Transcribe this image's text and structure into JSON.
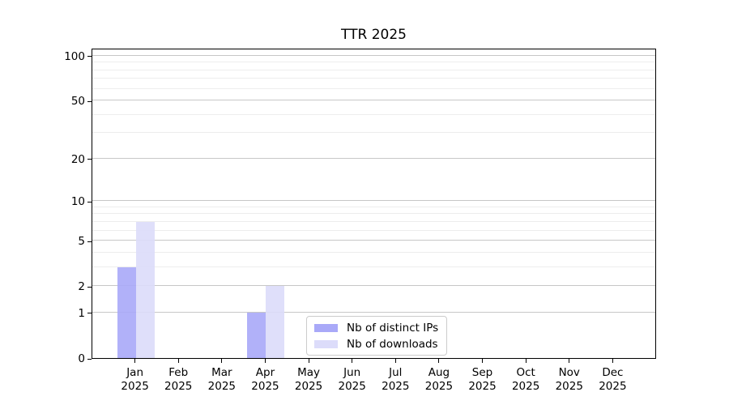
{
  "chart_data": {
    "type": "bar",
    "title": "TTR 2025",
    "categories": [
      "Jan 2025",
      "Feb 2025",
      "Mar 2025",
      "Apr 2025",
      "May 2025",
      "Jun 2025",
      "Jul 2025",
      "Aug 2025",
      "Sep 2025",
      "Oct 2025",
      "Nov 2025",
      "Dec 2025"
    ],
    "x_tick_months": [
      "Jan",
      "Feb",
      "Mar",
      "Apr",
      "May",
      "Jun",
      "Jul",
      "Aug",
      "Sep",
      "Oct",
      "Nov",
      "Dec"
    ],
    "x_tick_year": "2025",
    "series": [
      {
        "name": "Nb of distinct IPs",
        "color": "#a9a9f8",
        "values": [
          3,
          0,
          0,
          1,
          0,
          0,
          0,
          0,
          0,
          0,
          0,
          0
        ]
      },
      {
        "name": "Nb of downloads",
        "color": "#dcdcfa",
        "values": [
          7,
          0,
          0,
          2,
          0,
          0,
          0,
          0,
          0,
          0,
          0,
          0
        ]
      }
    ],
    "y_axis": {
      "scale": "log1p",
      "major_ticks": [
        0,
        1,
        2,
        5,
        10,
        20,
        50,
        100
      ],
      "minor_ticks": [
        3,
        4,
        6,
        7,
        8,
        9,
        30,
        40,
        60,
        70,
        80,
        90
      ],
      "ylim": [
        0,
        113
      ]
    },
    "legend": {
      "entries": [
        "Nb of distinct IPs",
        "Nb of downloads"
      ],
      "position": "lower center"
    },
    "grid": {
      "horizontal": true,
      "vertical": false
    },
    "colors": {
      "major_grid": "#c7c7c7",
      "minor_grid": "#ededed",
      "spine": "#000000"
    }
  }
}
